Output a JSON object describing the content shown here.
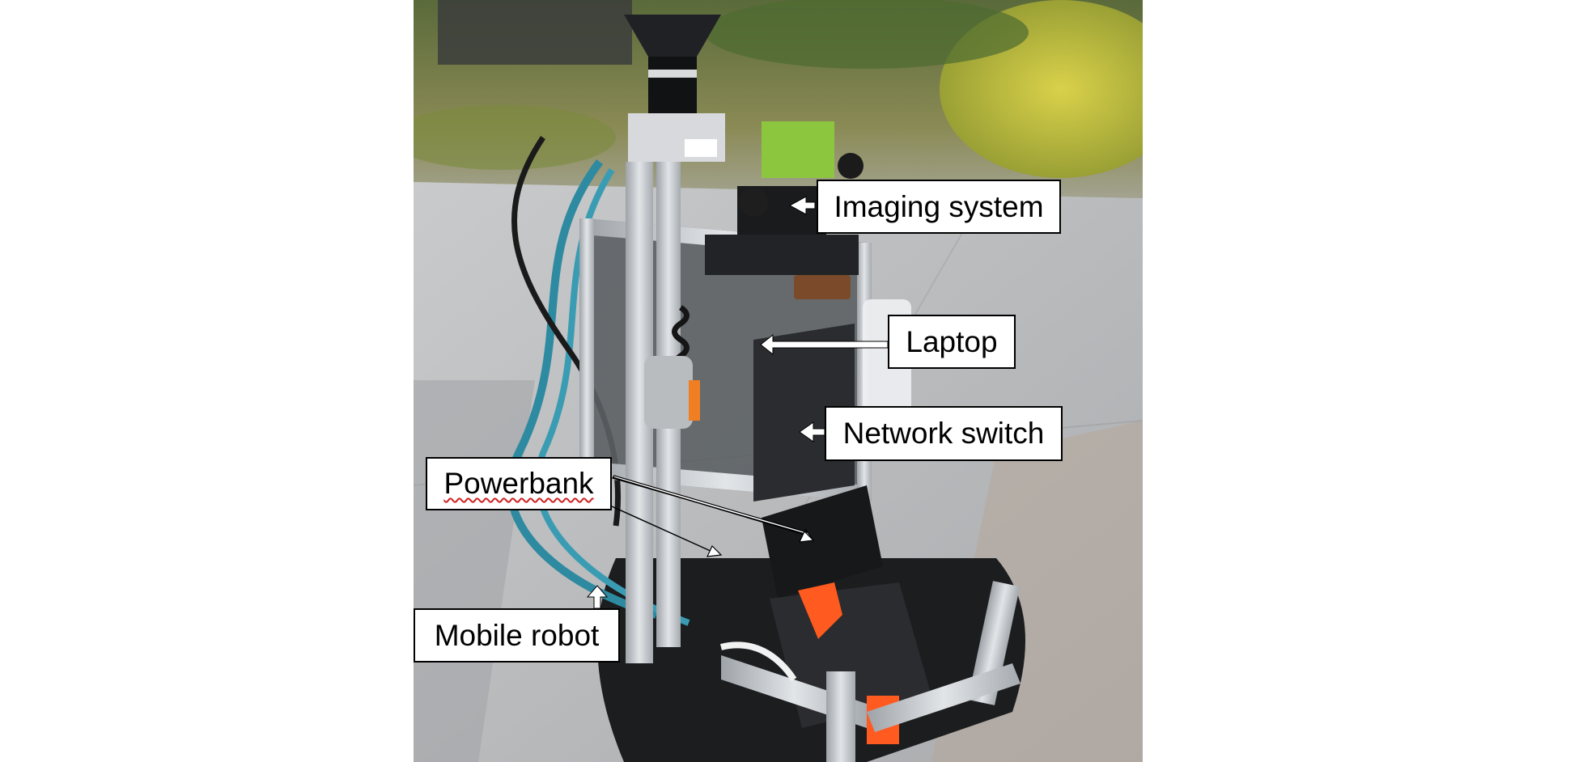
{
  "figure": {
    "labels": {
      "imaging_system": "Imaging system",
      "laptop": "Laptop",
      "network_switch": "Network switch",
      "powerbank": "Powerbank",
      "mobile_robot": "Mobile robot"
    },
    "colors": {
      "background": "#ffffff",
      "label_fill": "#ffffff",
      "label_border": "#000000",
      "arrow_fill": "#ffffff",
      "camera_green": "#8cc63f",
      "aluminium_frame": "#c8ccd0",
      "pavement": "#bfc1c3",
      "foliage": "#6f8a3a",
      "cable_teal": "#2e8aa0",
      "powerbank_orange": "#ff5a1f"
    }
  }
}
